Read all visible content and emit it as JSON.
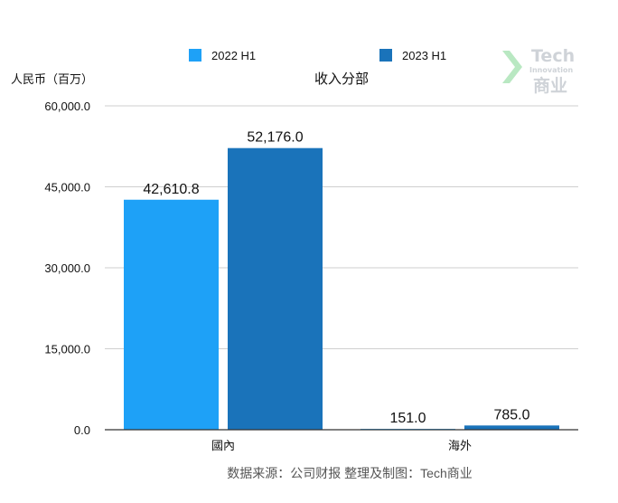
{
  "chart_data": {
    "type": "bar",
    "title": "收入分部",
    "ylabel": "人民币（百万）",
    "categories": [
      "國內",
      "海外"
    ],
    "series": [
      {
        "name": "2022 H1",
        "values": [
          42610.8,
          151.0
        ],
        "labels": [
          "42,610.8",
          "151.0"
        ],
        "color": "#1ea1f7"
      },
      {
        "name": "2023 H1",
        "values": [
          52176.0,
          785.0
        ],
        "labels": [
          "52,176.0",
          "785.0"
        ],
        "color": "#1a73ba"
      }
    ],
    "ylim": [
      0,
      60000
    ],
    "yticks": [
      0,
      15000,
      30000,
      45000,
      60000
    ],
    "ytick_labels": [
      "0.0",
      "15,000.0",
      "30,000.0",
      "45,000.0",
      "60,000.0"
    ],
    "grid": true,
    "legend_position": "top-center"
  },
  "source_note": "数据来源：公司财报 整理及制图：Tech商业",
  "watermark": {
    "main": "Tech",
    "sub": "Innovation",
    "cn": "商业"
  }
}
